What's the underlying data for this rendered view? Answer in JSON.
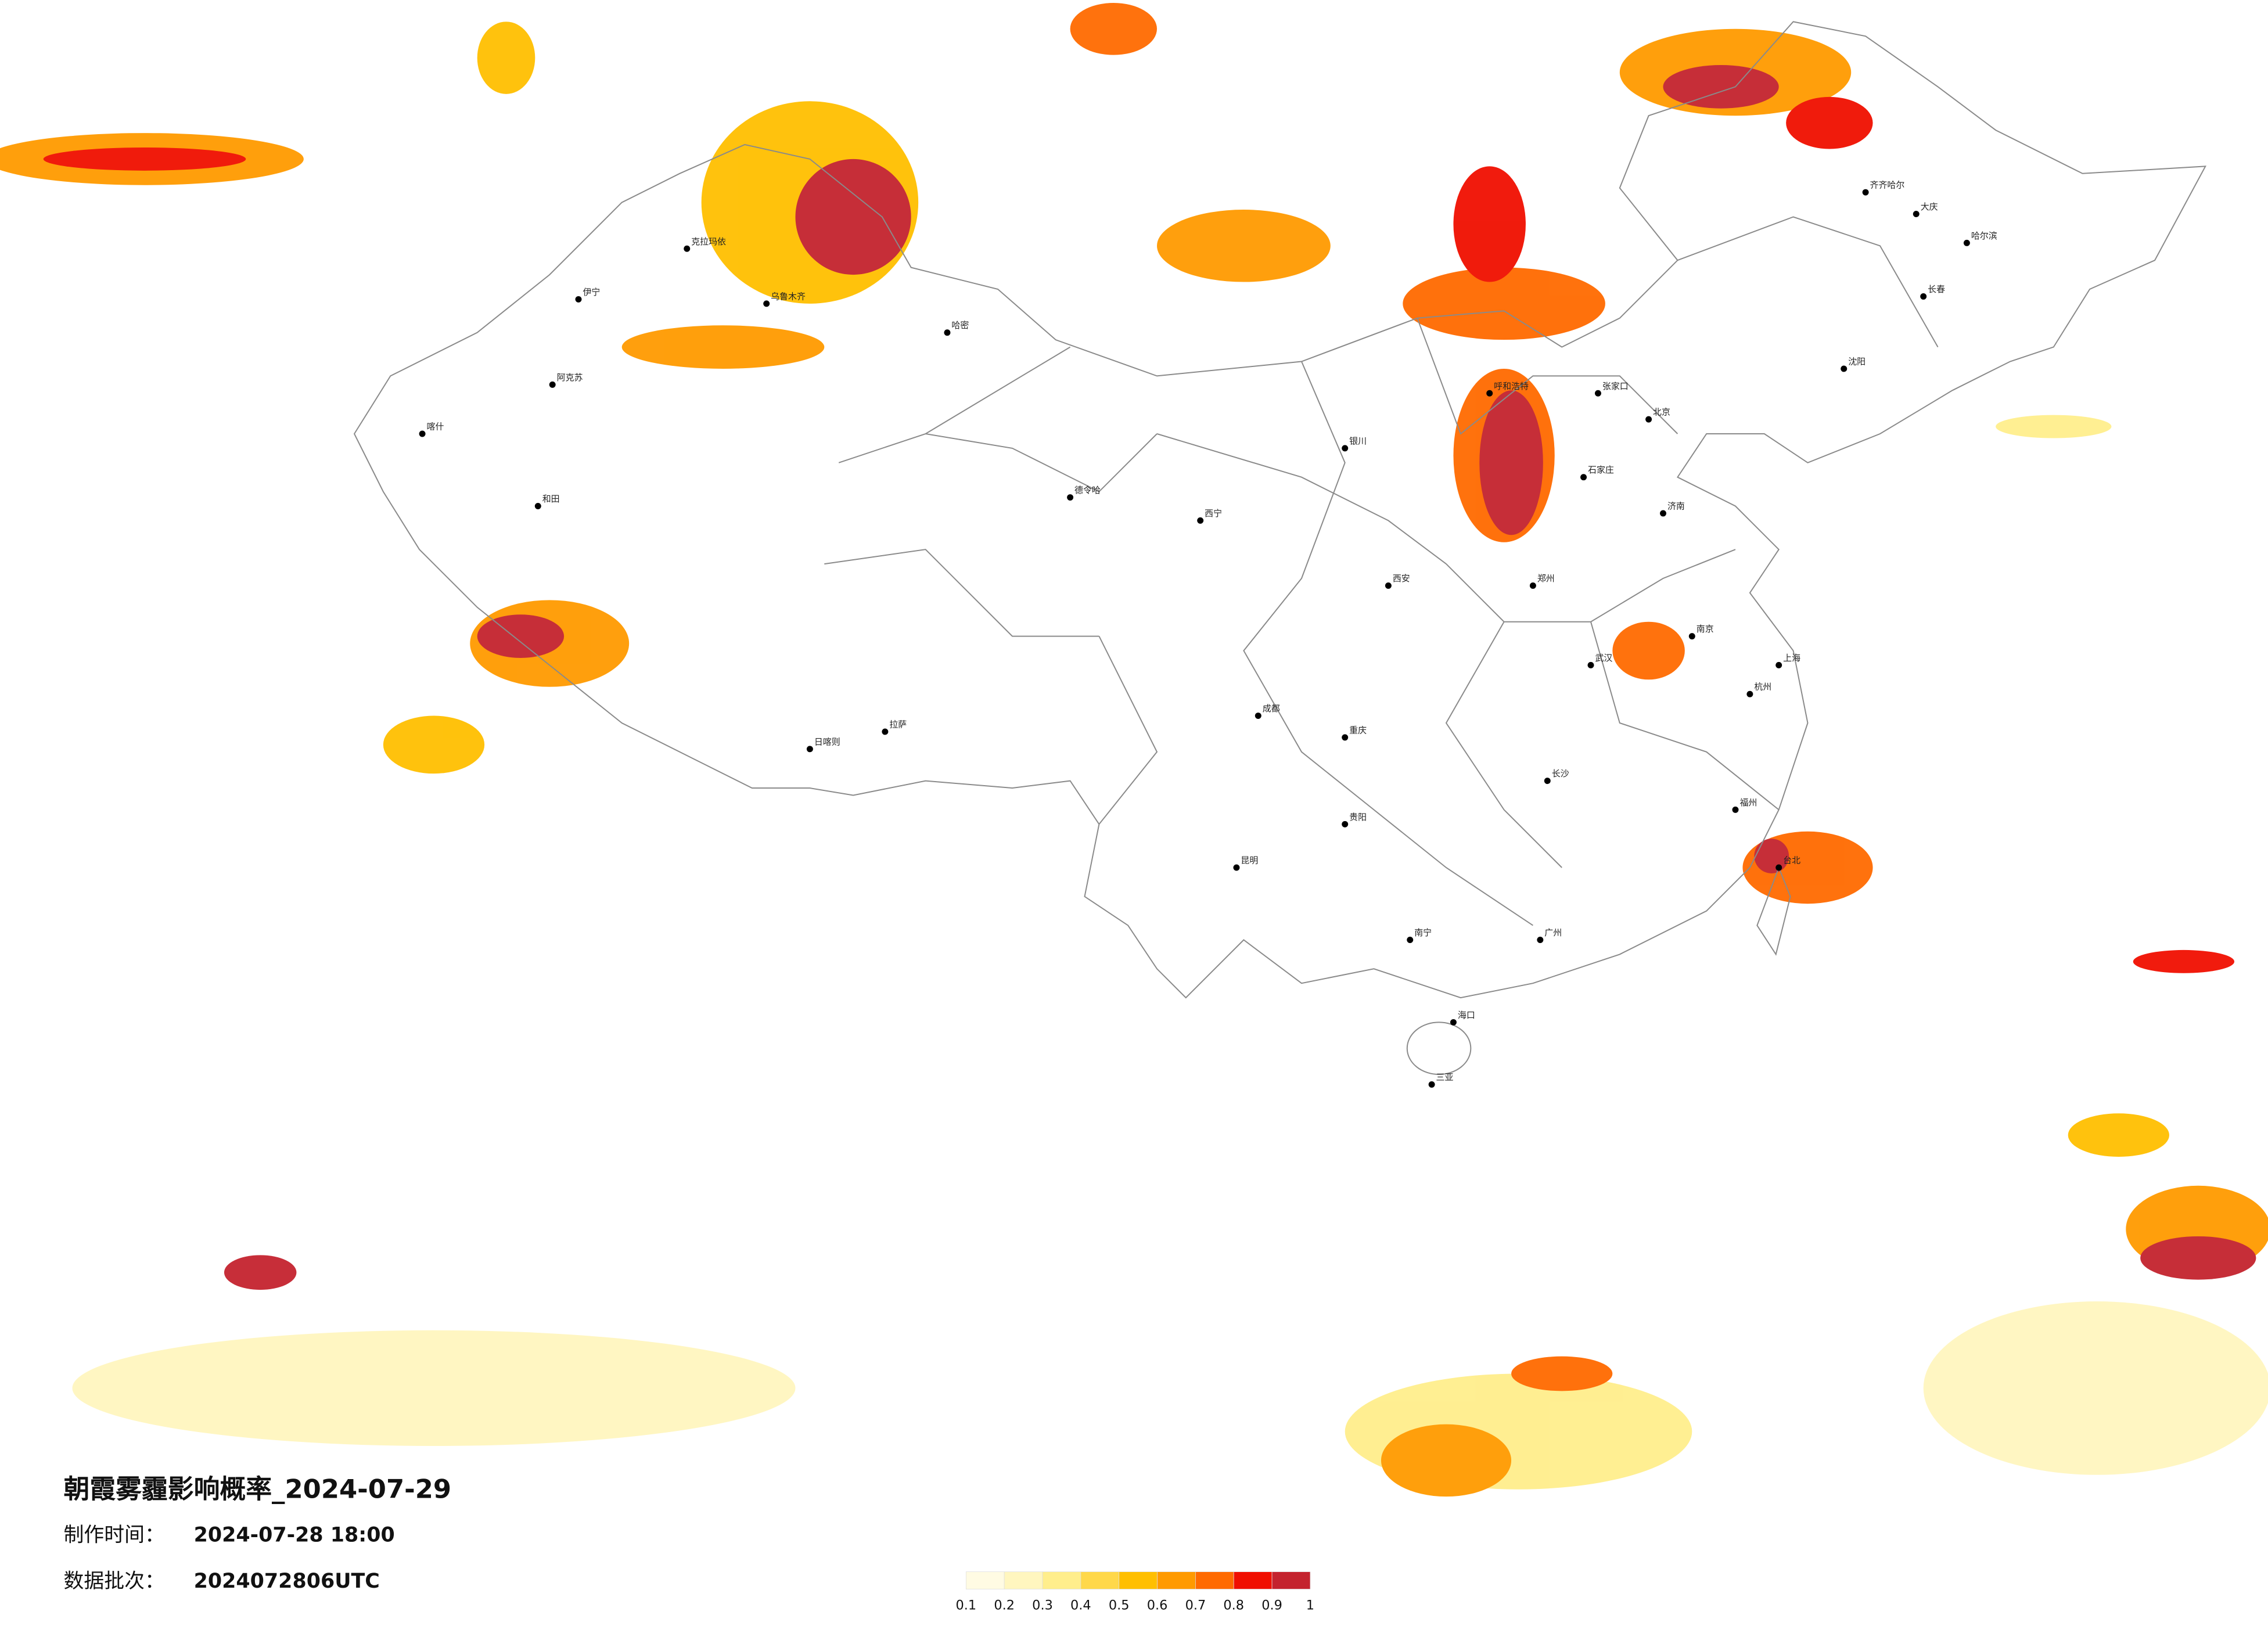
{
  "title": "朝霞雾霾影响概率_2024-07-29",
  "production_time_label": "制作时间：",
  "production_time": "2024-07-28 18:00",
  "batch_label": "数据批次：",
  "batch": "2024072806UTC",
  "legend": {
    "ticks": [
      0.1,
      0.2,
      0.3,
      0.4,
      0.5,
      0.6,
      0.7,
      0.8,
      0.9,
      1
    ],
    "colors": [
      "#fffbe3",
      "#fff6bf",
      "#ffee8c",
      "#ffd84a",
      "#ffbf00",
      "#ff9a00",
      "#ff6a00",
      "#f00f00",
      "#c4232e"
    ]
  },
  "cities": [
    "克拉玛依",
    "乌鲁木齐",
    "伊宁",
    "阿克苏",
    "喀什",
    "和田",
    "哈密",
    "拉萨",
    "日喀则",
    "德令哈",
    "西宁",
    "银川",
    "呼和浩特",
    "张家口",
    "北京",
    "石家庄",
    "济南",
    "郑州",
    "西安",
    "成都",
    "重庆",
    "贵阳",
    "昆明",
    "南宁",
    "广州",
    "长沙",
    "武汉",
    "南京",
    "上海",
    "杭州",
    "福州",
    "台北",
    "哈尔滨",
    "长春",
    "沈阳",
    "海口",
    "三亚",
    "大庆",
    "齐齐哈尔"
  ]
}
